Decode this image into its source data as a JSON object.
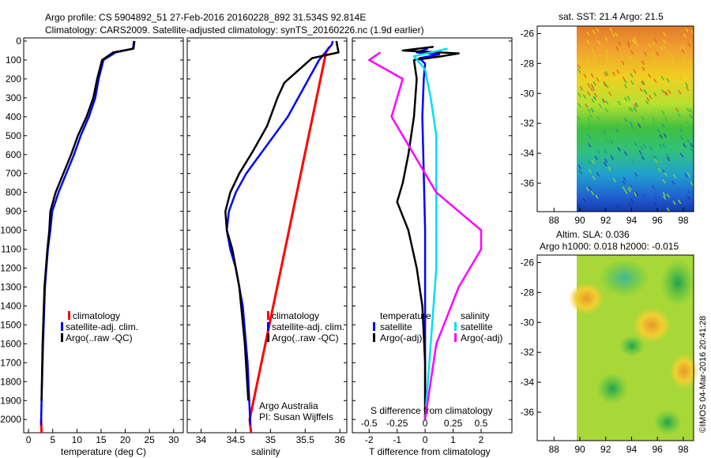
{
  "header": {
    "title_line1": "Argo profile: CS 5904892_51 27-Feb-2016 20160228_892 31.534S 92.814E",
    "title_line2": "Climatology: CARS2009. Satellite-adjusted climatology: synTS_20160226.nc (1.9d earlier)"
  },
  "colors": {
    "climatology": "#ff0000",
    "satellite_adj": "#0000ff",
    "argo": "#000000",
    "sat_salinity": "#00e0f0",
    "argo_salinity_adj": "#ff00ff"
  },
  "chart_data": [
    {
      "type": "line",
      "id": "temperature",
      "xlabel": "temperature (deg C)",
      "ylabel": "",
      "xlim": [
        -1,
        32
      ],
      "ylim": [
        2070,
        0
      ],
      "xticks": [
        "0",
        "5",
        "10",
        "15",
        "20",
        "25",
        "30"
      ],
      "yticks": [
        "0",
        "100",
        "200",
        "300",
        "400",
        "500",
        "600",
        "700",
        "800",
        "900",
        "1000",
        "1100",
        "1200",
        "1300",
        "1400",
        "1500",
        "1600",
        "1700",
        "1800",
        "1900",
        "2000"
      ],
      "legend": [
        "climatology",
        "satellite-adj. clim.",
        "Argo(..raw -QC)"
      ],
      "series": [
        {
          "name": "climatology",
          "x": [
            2.6,
            2.7
          ],
          "y": [
            2000,
            2070
          ]
        },
        {
          "name": "satellite-adj. clim.",
          "x": [
            21.8,
            21.6,
            18,
            15.5,
            14.5,
            13.8,
            12.5,
            10.8,
            9.4,
            7.8,
            6.2,
            4.9,
            4.5,
            4.0,
            3.4,
            3.0,
            2.7,
            2.6
          ],
          "y": [
            0,
            40,
            60,
            100,
            200,
            300,
            400,
            500,
            600,
            700,
            800,
            900,
            1000,
            1100,
            1300,
            1600,
            1900,
            2030
          ]
        },
        {
          "name": "Argo(..raw -QC)",
          "x": [
            21.9,
            21.7,
            17.5,
            15.2,
            14.2,
            13.4,
            12.0,
            10.2,
            8.8,
            7.2,
            5.6,
            4.5,
            4.3,
            3.9,
            3.3,
            2.9,
            2.7
          ],
          "y": [
            0,
            40,
            60,
            100,
            200,
            300,
            400,
            500,
            600,
            700,
            800,
            900,
            1000,
            1100,
            1300,
            1600,
            1900
          ]
        }
      ]
    },
    {
      "type": "line",
      "id": "salinity",
      "xlabel": "salinity",
      "xlim": [
        33.8,
        36.1
      ],
      "ylim": [
        2070,
        0
      ],
      "xticks": [
        "34",
        "34.5",
        "35",
        "35.5",
        "36"
      ],
      "legend": [
        "climatology",
        "satellite-adj. clim.",
        "Argo(..raw -QC)"
      ],
      "annotation": [
        "Argo Australia",
        "PI: Susan Wijffels"
      ],
      "series": [
        {
          "name": "climatology",
          "x": [
            35.85,
            35.8,
            34.7,
            34.72
          ],
          "y": [
            30,
            60,
            2000,
            2070
          ]
        },
        {
          "name": "satellite-adj. clim.",
          "x": [
            35.9,
            35.88,
            35.7,
            35.55,
            35.4,
            35.25,
            35.05,
            34.85,
            34.65,
            34.5,
            34.4,
            34.37,
            34.42,
            34.5,
            34.6,
            34.67,
            34.71
          ],
          "y": [
            0,
            20,
            100,
            200,
            300,
            400,
            500,
            600,
            700,
            800,
            900,
            1000,
            1100,
            1200,
            1400,
            1700,
            2030
          ]
        },
        {
          "name": "Argo(..raw -QC)",
          "x": [
            35.95,
            35.98,
            35.6,
            35.2,
            35.1,
            34.95,
            34.75,
            34.55,
            34.42,
            34.35,
            34.37,
            34.45,
            34.55,
            34.63,
            34.68
          ],
          "y": [
            0,
            60,
            90,
            220,
            300,
            450,
            580,
            700,
            800,
            900,
            1000,
            1100,
            1300,
            1600,
            1900
          ]
        }
      ]
    },
    {
      "type": "line",
      "id": "difference",
      "xlabel": "T difference from climatology",
      "xlabel2": "S difference from climatology",
      "xlim": [
        -2.6,
        3.1
      ],
      "ylim": [
        2070,
        0
      ],
      "xticks": [
        "-2",
        "-1",
        "0",
        "1",
        "2"
      ],
      "xticks2": [
        "-0.5",
        "-0.25",
        "0",
        "0.25",
        "0.5"
      ],
      "legend_headers": [
        "temperature",
        "salinity"
      ],
      "legend": [
        "satellite",
        "Argo(-adj)",
        "satellite",
        "Argo(-adj)"
      ],
      "series": [
        {
          "name": "T satellite",
          "x": [
            0.1,
            -0.3,
            0.5,
            -0.2,
            0.0,
            -0.05,
            -0.1,
            -0.05,
            0.0,
            0.0,
            0.0,
            0.0
          ],
          "y": [
            40,
            60,
            70,
            90,
            120,
            200,
            400,
            700,
            1000,
            1300,
            1700,
            2000
          ]
        },
        {
          "name": "T Argo(-adj)",
          "x": [
            0.3,
            -0.8,
            1.2,
            0.6,
            -0.4,
            -0.3,
            -0.4,
            -0.6,
            -0.8,
            -1.0,
            -0.6,
            -0.3,
            -0.1,
            0.0,
            0.0
          ],
          "y": [
            30,
            50,
            65,
            80,
            100,
            200,
            400,
            600,
            750,
            850,
            1000,
            1200,
            1400,
            1700,
            2000
          ]
        },
        {
          "name": "S satellite",
          "x": [
            0.2,
            -0.1,
            0.0,
            0.05,
            0.1,
            0.1,
            0.1,
            0.05,
            0.0
          ],
          "y": [
            40,
            80,
            150,
            300,
            500,
            800,
            1200,
            1600,
            2000
          ]
        },
        {
          "name": "S Argo(-adj)",
          "x": [
            -0.4,
            -0.5,
            -0.2,
            -0.3,
            -0.1,
            0.0,
            0.1,
            0.3,
            0.5,
            0.5,
            0.3,
            0.1,
            0.0
          ],
          "y": [
            60,
            100,
            200,
            400,
            600,
            700,
            800,
            900,
            1000,
            1100,
            1300,
            1600,
            2000
          ]
        }
      ]
    }
  ],
  "maps": {
    "sst": {
      "title": "sat. SST: 21.4  Argo: 21.5",
      "xticks": [
        "88",
        "90",
        "92",
        "94",
        "96",
        "98"
      ],
      "yticks": [
        "-26",
        "-28",
        "-30",
        "-32",
        "-34",
        "-36"
      ]
    },
    "sla": {
      "title_line1": "Altim. SLA: 0.036",
      "title_line2": "Argo h1000: 0.018  h2000: -0.015",
      "xticks": [
        "88",
        "90",
        "92",
        "94",
        "96",
        "98"
      ],
      "yticks": [
        "-26",
        "-28",
        "-30",
        "-32",
        "-34",
        "-36"
      ]
    }
  },
  "footer": {
    "credit": "©IMOS 04-Mar-2016 20:41:28"
  }
}
